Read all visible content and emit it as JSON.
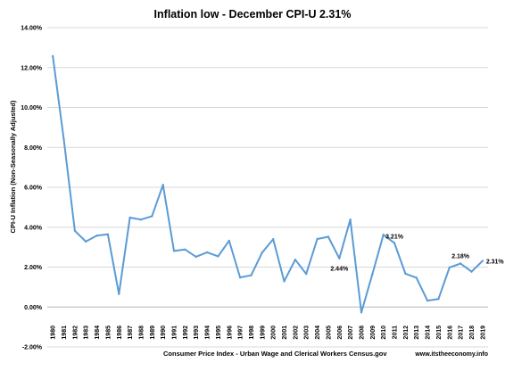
{
  "chart_data": {
    "type": "line",
    "title": "Inflation low - December CPI-U 2.31%",
    "xlabel": "Consumer Price Index - Urban Wage and Clerical Workers Census.gov",
    "ylabel": "CPI-U Inflation (Non-Seasonally Adjusted)",
    "source": "www.itstheeconomy.info",
    "ylim": [
      -2,
      14
    ],
    "y_ticks": [
      "-2.00%",
      "0.00%",
      "2.00%",
      "4.00%",
      "6.00%",
      "8.00%",
      "10.00%",
      "12.00%",
      "14.00%"
    ],
    "grid": true,
    "line_color": "#5b9bd5",
    "categories": [
      "1980",
      "1981",
      "1982",
      "1983",
      "1984",
      "1985",
      "1986",
      "1987",
      "1988",
      "1989",
      "1990",
      "1991",
      "1992",
      "1993",
      "1994",
      "1995",
      "1996",
      "1997",
      "1998",
      "1999",
      "2000",
      "2001",
      "2002",
      "2003",
      "2004",
      "2005",
      "2006",
      "2007",
      "2008",
      "2009",
      "2010",
      "2011",
      "2012",
      "2013",
      "2014",
      "2015",
      "2016",
      "2017",
      "2018",
      "2019"
    ],
    "values": [
      12.57,
      8.4,
      3.82,
      3.28,
      3.58,
      3.64,
      0.65,
      4.48,
      4.38,
      4.55,
      6.12,
      2.81,
      2.88,
      2.52,
      2.74,
      2.54,
      3.32,
      1.48,
      1.59,
      2.73,
      3.4,
      1.29,
      2.37,
      1.66,
      3.41,
      3.52,
      2.44,
      4.38,
      -0.27,
      1.64,
      3.62,
      3.21,
      1.67,
      1.47,
      0.32,
      0.4,
      1.98,
      2.18,
      1.77,
      2.31
    ],
    "annotations": [
      {
        "year": "2006",
        "text": "2.44%"
      },
      {
        "year": "2011",
        "text": "3.21%"
      },
      {
        "year": "2017",
        "text": "2.18%"
      },
      {
        "year": "2019",
        "text": "2.31%"
      }
    ]
  }
}
